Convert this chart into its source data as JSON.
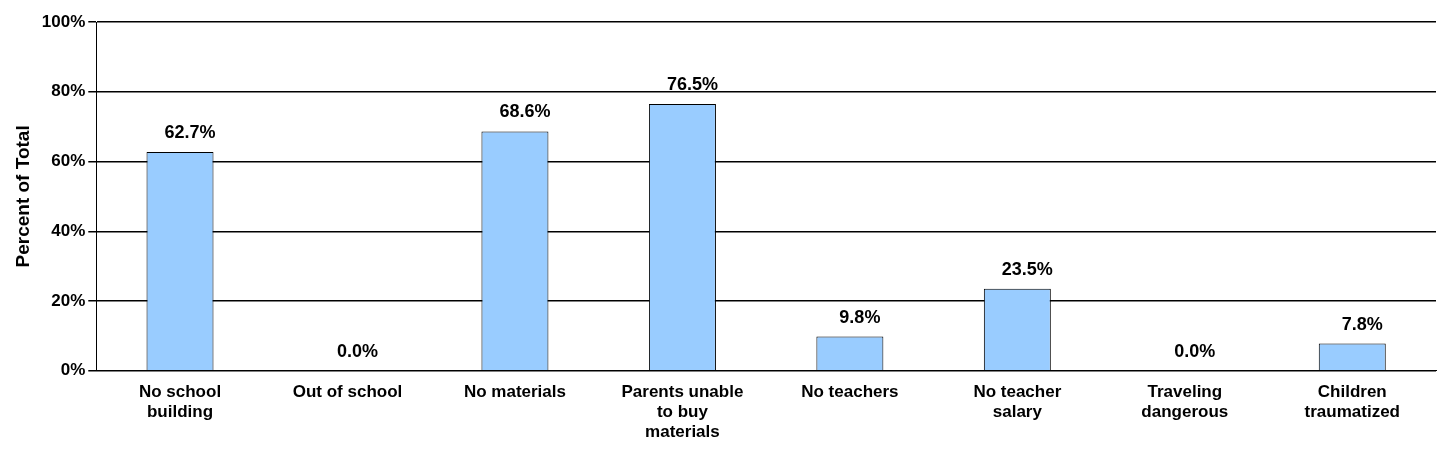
{
  "chart_data": {
    "type": "bar",
    "ylabel": "Percent of Total",
    "categories": [
      "No school building",
      "Out of school",
      "No materials",
      "Parents unable to buy materials",
      "No teachers",
      "No teacher salary",
      "Traveling dangerous",
      "Children traumatized"
    ],
    "values": [
      62.7,
      0.0,
      68.6,
      76.5,
      9.8,
      23.5,
      0.0,
      7.8
    ],
    "value_labels": [
      "62.7%",
      "0.0%",
      "68.6%",
      "76.5%",
      "9.8%",
      "23.5%",
      "0.0%",
      "7.8%"
    ],
    "color": "#99ccff",
    "ylim": [
      0,
      100
    ],
    "yticks": [
      {
        "value": 0,
        "label": "0%"
      },
      {
        "value": 20,
        "label": "20%"
      },
      {
        "value": 40,
        "label": "40%"
      },
      {
        "value": 60,
        "label": "60%"
      },
      {
        "value": 80,
        "label": "80%"
      },
      {
        "value": 100,
        "label": "100%"
      }
    ],
    "grid": "y"
  }
}
